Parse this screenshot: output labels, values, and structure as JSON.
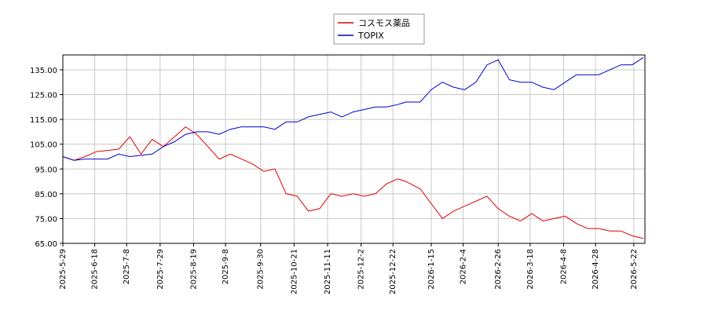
{
  "chart_data": {
    "type": "line",
    "x": [
      "2025-05-29",
      "2025-06-05",
      "2025-06-12",
      "2025-06-19",
      "2025-06-26",
      "2025-07-03",
      "2025-07-10",
      "2025-07-17",
      "2025-07-24",
      "2025-07-31",
      "2025-08-07",
      "2025-08-14",
      "2025-08-21",
      "2025-08-28",
      "2025-09-04",
      "2025-09-11",
      "2025-09-18",
      "2025-09-25",
      "2025-10-02",
      "2025-10-09",
      "2025-10-16",
      "2025-10-23",
      "2025-10-30",
      "2025-11-06",
      "2025-11-13",
      "2025-11-20",
      "2025-11-27",
      "2025-12-04",
      "2025-12-11",
      "2025-12-18",
      "2025-12-25",
      "2025-12-30",
      "2026-01-08",
      "2026-01-15",
      "2026-01-22",
      "2026-01-29",
      "2026-02-05",
      "2026-02-12",
      "2026-02-19",
      "2026-02-26",
      "2026-03-05",
      "2026-03-12",
      "2026-03-19",
      "2026-03-26",
      "2026-04-02",
      "2026-04-09",
      "2026-04-16",
      "2026-04-23",
      "2026-04-30",
      "2026-05-07",
      "2026-05-14",
      "2026-05-21",
      "2026-05-28"
    ],
    "series": [
      {
        "name": "コスモス薬品",
        "color": "#dd0000",
        "values": [
          100,
          98.5,
          100,
          102,
          102.5,
          103,
          108,
          101,
          107,
          104,
          108,
          112,
          109,
          104,
          99,
          101,
          99,
          97,
          94,
          95,
          85,
          84,
          78,
          79,
          85,
          84,
          85,
          84,
          85,
          89,
          91,
          90,
          87,
          81,
          75,
          78,
          80,
          82,
          84,
          79,
          76,
          74,
          77,
          74,
          75,
          76,
          73,
          71,
          71,
          70,
          70,
          68,
          67
        ]
      },
      {
        "name": "TOPIX",
        "color": "#0000cc",
        "values": [
          100,
          98.5,
          99,
          99,
          99,
          101,
          100,
          100.5,
          101,
          104,
          106,
          109,
          110,
          110,
          109,
          111,
          112,
          112,
          112,
          111,
          114,
          114,
          116,
          117,
          118,
          116,
          118,
          119,
          120,
          120,
          121,
          122,
          122,
          127,
          130,
          128,
          127,
          130,
          137,
          139,
          131,
          130,
          130,
          128,
          127,
          130,
          133,
          133,
          133,
          135,
          137,
          137,
          140
        ]
      }
    ],
    "xlim": [
      "2025-05-29",
      "2026-05-29"
    ],
    "xticks": [
      {
        "value": "2025-05-29",
        "label": "2025-5-29"
      },
      {
        "value": "2025-06-18",
        "label": "2025-6-18"
      },
      {
        "value": "2025-07-08",
        "label": "2025-7-8"
      },
      {
        "value": "2025-07-29",
        "label": "2025-7-29"
      },
      {
        "value": "2025-08-19",
        "label": "2025-8-19"
      },
      {
        "value": "2025-09-08",
        "label": "2025-9-8"
      },
      {
        "value": "2025-09-30",
        "label": "2025-9-30"
      },
      {
        "value": "2025-10-21",
        "label": "2025-10-21"
      },
      {
        "value": "2025-11-11",
        "label": "2025-11-11"
      },
      {
        "value": "2025-12-02",
        "label": "2025-12-2"
      },
      {
        "value": "2025-12-22",
        "label": "2025-12-22"
      },
      {
        "value": "2026-01-15",
        "label": "2026-1-15"
      },
      {
        "value": "2026-02-04",
        "label": "2026-2-4"
      },
      {
        "value": "2026-02-26",
        "label": "2026-2-26"
      },
      {
        "value": "2026-03-18",
        "label": "2026-3-18"
      },
      {
        "value": "2026-04-08",
        "label": "2026-4-8"
      },
      {
        "value": "2026-04-28",
        "label": "2026-4-28"
      },
      {
        "value": "2026-05-22",
        "label": "2026-5-22"
      }
    ],
    "ylim": [
      65,
      141
    ],
    "yticks": [
      {
        "value": 65,
        "label": "65.00"
      },
      {
        "value": 75,
        "label": "75.00"
      },
      {
        "value": 85,
        "label": "85.00"
      },
      {
        "value": 95,
        "label": "95.00"
      },
      {
        "value": 105,
        "label": "105.00"
      },
      {
        "value": 115,
        "label": "115.00"
      },
      {
        "value": 125,
        "label": "125.00"
      },
      {
        "value": 135,
        "label": "135.00"
      }
    ],
    "grid": true,
    "legend": "top"
  }
}
